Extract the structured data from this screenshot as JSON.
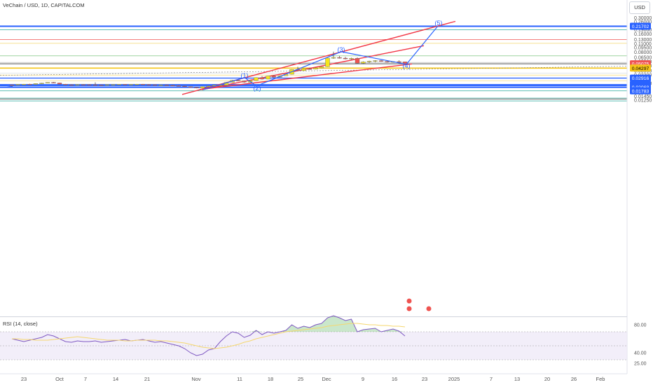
{
  "header": {
    "title": "VeChain / USD, 1D, CAPITALCOM",
    "currency_button": "USD",
    "rsi_title": "RSI (14, close)"
  },
  "chart_data": {
    "type": "candlestick",
    "price_axis": {
      "scale": "log",
      "ticks": [
        "0.30000",
        "0.26000",
        "0.19000",
        "0.16000",
        "0.13000",
        "0.11000",
        "0.09500",
        "0.08000",
        "0.06500",
        "0.05500",
        "0.04700",
        "0.03900",
        "0.03300",
        "0.02400",
        "0.01450",
        "0.01250"
      ]
    },
    "price_tags": [
      {
        "label": "0.21702",
        "color": "#2962ff"
      },
      {
        "label": "0.05075",
        "color": "#ef5350"
      },
      {
        "label": "0.04297",
        "color": "#f5c518",
        "text_color": "#000000"
      },
      {
        "label": "0.02916",
        "color": "#2962ff"
      },
      {
        "label": "0.02275",
        "color": "#2962ff"
      },
      {
        "label": "0.02245",
        "color": "#2962ff"
      },
      {
        "label": "0.02171",
        "color": "#2962ff"
      },
      {
        "label": "0.02068",
        "color": "#2962ff"
      },
      {
        "label": "0.01783",
        "color": "#2962ff"
      }
    ],
    "time_axis": [
      "23",
      "Oct",
      "7",
      "14",
      "21",
      "Nov",
      "11",
      "18",
      "25",
      "Dec",
      "9",
      "16",
      "23",
      "2025",
      "7",
      "13",
      "20",
      "26",
      "Feb"
    ],
    "candles": [
      [
        0.0225,
        0.0227,
        0.0221,
        0.0224
      ],
      [
        0.0224,
        0.0231,
        0.0222,
        0.0229
      ],
      [
        0.0229,
        0.0233,
        0.0226,
        0.0231
      ],
      [
        0.0231,
        0.0235,
        0.0228,
        0.0229
      ],
      [
        0.0229,
        0.0238,
        0.0227,
        0.0236
      ],
      [
        0.0236,
        0.0243,
        0.0233,
        0.0241
      ],
      [
        0.0241,
        0.0249,
        0.0239,
        0.0247
      ],
      [
        0.0247,
        0.0251,
        0.024,
        0.0242
      ],
      [
        0.0242,
        0.0244,
        0.0229,
        0.0231
      ],
      [
        0.0231,
        0.0233,
        0.0224,
        0.0226
      ],
      [
        0.0226,
        0.0229,
        0.0223,
        0.0225
      ],
      [
        0.0225,
        0.023,
        0.0222,
        0.0228
      ],
      [
        0.0228,
        0.0231,
        0.0225,
        0.0227
      ],
      [
        0.0227,
        0.023,
        0.0224,
        0.0226
      ],
      [
        0.0226,
        0.0248,
        0.0222,
        0.0224
      ],
      [
        0.0224,
        0.0226,
        0.0219,
        0.0221
      ],
      [
        0.0221,
        0.0228,
        0.022,
        0.0227
      ],
      [
        0.0227,
        0.023,
        0.0225,
        0.0228
      ],
      [
        0.0228,
        0.0232,
        0.0226,
        0.023
      ],
      [
        0.023,
        0.0232,
        0.0225,
        0.0227
      ],
      [
        0.0227,
        0.0231,
        0.0225,
        0.0229
      ],
      [
        0.0229,
        0.0233,
        0.0226,
        0.0231
      ],
      [
        0.0231,
        0.0233,
        0.0227,
        0.0228
      ],
      [
        0.0228,
        0.0231,
        0.0224,
        0.0226
      ],
      [
        0.0226,
        0.0228,
        0.022,
        0.0222
      ],
      [
        0.0222,
        0.0226,
        0.0218,
        0.0224
      ],
      [
        0.0224,
        0.0227,
        0.022,
        0.0221
      ],
      [
        0.0221,
        0.0224,
        0.0216,
        0.0218
      ],
      [
        0.0218,
        0.0222,
        0.0214,
        0.0215
      ],
      [
        0.0215,
        0.0217,
        0.0208,
        0.021
      ],
      [
        0.021,
        0.0212,
        0.0202,
        0.0204
      ],
      [
        0.0204,
        0.0206,
        0.0197,
        0.0199
      ],
      [
        0.0199,
        0.0211,
        0.0196,
        0.0209
      ],
      [
        0.0209,
        0.0217,
        0.0206,
        0.0215
      ],
      [
        0.0215,
        0.0224,
        0.0213,
        0.0222
      ],
      [
        0.0222,
        0.0226,
        0.0219,
        0.0223
      ],
      [
        0.0223,
        0.025,
        0.0221,
        0.0248
      ],
      [
        0.0248,
        0.0272,
        0.0245,
        0.0269
      ],
      [
        0.0269,
        0.0281,
        0.0258,
        0.0262
      ],
      [
        0.0262,
        0.0266,
        0.0244,
        0.0249
      ],
      [
        0.0249,
        0.0269,
        0.0246,
        0.0266
      ],
      [
        0.0266,
        0.0301,
        0.0263,
        0.0298
      ],
      [
        0.0298,
        0.0316,
        0.0275,
        0.0281
      ],
      [
        0.0281,
        0.0318,
        0.0278,
        0.0315
      ],
      [
        0.0315,
        0.0328,
        0.0296,
        0.0302
      ],
      [
        0.0302,
        0.0322,
        0.0298,
        0.0319
      ],
      [
        0.0319,
        0.0343,
        0.0317,
        0.0339
      ],
      [
        0.0339,
        0.0411,
        0.0336,
        0.0408
      ],
      [
        0.0408,
        0.0452,
        0.0381,
        0.0389
      ],
      [
        0.0389,
        0.0423,
        0.0382,
        0.0418
      ],
      [
        0.0418,
        0.0436,
        0.0404,
        0.0412
      ],
      [
        0.0412,
        0.0438,
        0.0409,
        0.0433
      ],
      [
        0.0433,
        0.0458,
        0.0429,
        0.0452
      ],
      [
        0.0452,
        0.0639,
        0.0449,
        0.0634
      ],
      [
        0.0634,
        0.0812,
        0.0616,
        0.0648
      ],
      [
        0.0648,
        0.0688,
        0.0623,
        0.0631
      ],
      [
        0.0631,
        0.0663,
        0.0601,
        0.0614
      ],
      [
        0.0614,
        0.0644,
        0.0596,
        0.0627
      ],
      [
        0.0627,
        0.0651,
        0.0509,
        0.0521
      ],
      [
        0.0521,
        0.0558,
        0.0501,
        0.0546
      ],
      [
        0.0546,
        0.0573,
        0.0524,
        0.0561
      ],
      [
        0.0561,
        0.0586,
        0.0538,
        0.0574
      ],
      [
        0.0574,
        0.0587,
        0.0549,
        0.0557
      ],
      [
        0.0557,
        0.0566,
        0.0531,
        0.0541
      ],
      [
        0.0541,
        0.0559,
        0.0529,
        0.0552
      ],
      [
        0.0552,
        0.0581,
        0.0534,
        0.0547
      ],
      [
        0.0547,
        0.0552,
        0.0495,
        0.0507
      ]
    ],
    "wave_labels": [
      {
        "label": "(1)",
        "price": 0.0322
      },
      {
        "label": "(2)",
        "price": 0.0197
      },
      {
        "label": "(3)",
        "price": 0.088
      },
      {
        "label": "(4)",
        "price": 0.0468
      },
      {
        "label": "(5)",
        "price": 0.244
      }
    ],
    "rsi": {
      "ticks": [
        "80.00",
        "40.00",
        "25.00"
      ],
      "values": [
        60,
        58,
        56,
        58,
        60,
        62,
        66,
        64,
        60,
        56,
        55,
        57,
        56,
        56,
        57,
        55,
        56,
        57,
        58,
        59,
        57,
        58,
        59,
        57,
        55,
        56,
        54,
        52,
        50,
        46,
        40,
        36,
        38,
        44,
        46,
        56,
        64,
        70,
        68,
        62,
        65,
        72,
        66,
        70,
        68,
        70,
        72,
        80,
        75,
        78,
        76,
        80,
        82,
        90,
        93,
        90,
        86,
        88,
        70,
        73,
        74,
        75,
        70,
        72,
        74,
        71,
        64
      ],
      "ma": [
        60,
        60,
        59,
        59,
        58,
        58,
        58,
        59,
        60,
        61,
        62,
        63,
        62,
        61,
        60,
        59,
        58,
        58,
        58,
        57,
        57,
        58,
        58,
        58,
        58,
        57,
        57,
        56,
        55,
        54,
        52,
        50,
        48,
        47,
        46,
        47,
        48,
        50,
        52,
        55,
        57,
        60,
        62,
        64,
        66,
        68,
        70,
        71,
        72,
        73,
        74,
        75,
        76,
        78,
        79,
        80,
        81,
        82,
        82,
        81,
        80,
        80,
        79,
        79,
        78,
        78,
        77
      ]
    }
  }
}
